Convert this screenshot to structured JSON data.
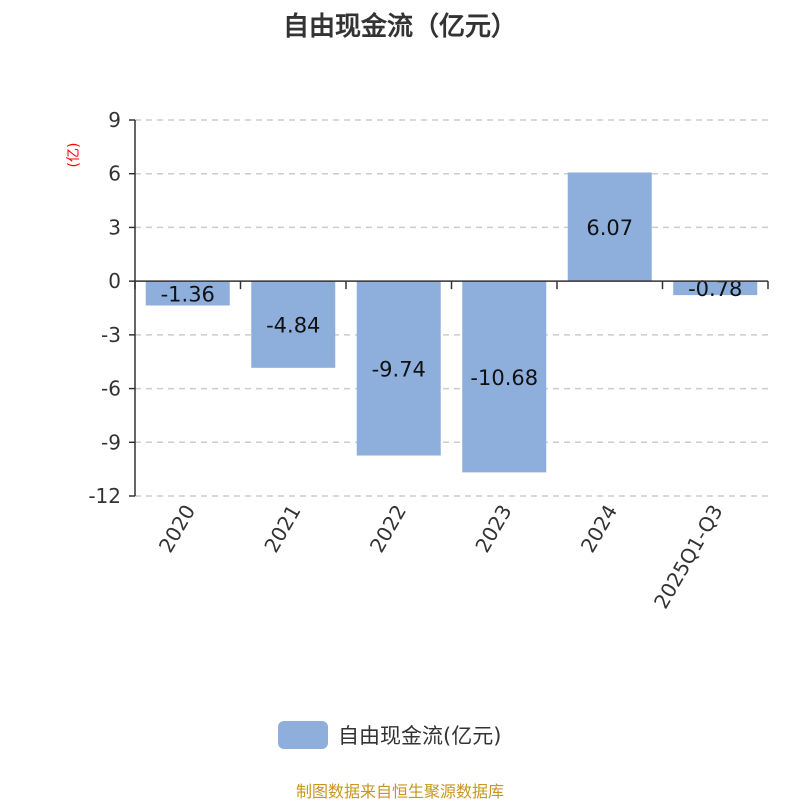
{
  "title": "自由现金流（亿元）",
  "source": "制图数据来自恒生聚源数据库",
  "chart_data": {
    "type": "bar",
    "title": "自由现金流（亿元）",
    "ylabel": "(亿)",
    "categories": [
      "2020",
      "2021",
      "2022",
      "2023",
      "2024",
      "2025Q1-Q3"
    ],
    "series": [
      {
        "name": "自由现金流(亿元)",
        "values": [
          -1.36,
          -4.84,
          -9.74,
          -10.68,
          6.07,
          -0.78
        ]
      }
    ],
    "data_labels": [
      "-1.36",
      "-4.84",
      "-9.74",
      "-10.68",
      "6.07",
      "-0.78"
    ],
    "ylim": [
      -12,
      9
    ],
    "yticks": [
      9,
      6,
      3,
      0,
      -3,
      -6,
      -9,
      -12
    ],
    "grid": true,
    "legend": "bottom",
    "colors": {
      "bar": "#8eaedb",
      "ylabel": "#ff0000",
      "source": "#c8961e"
    }
  }
}
